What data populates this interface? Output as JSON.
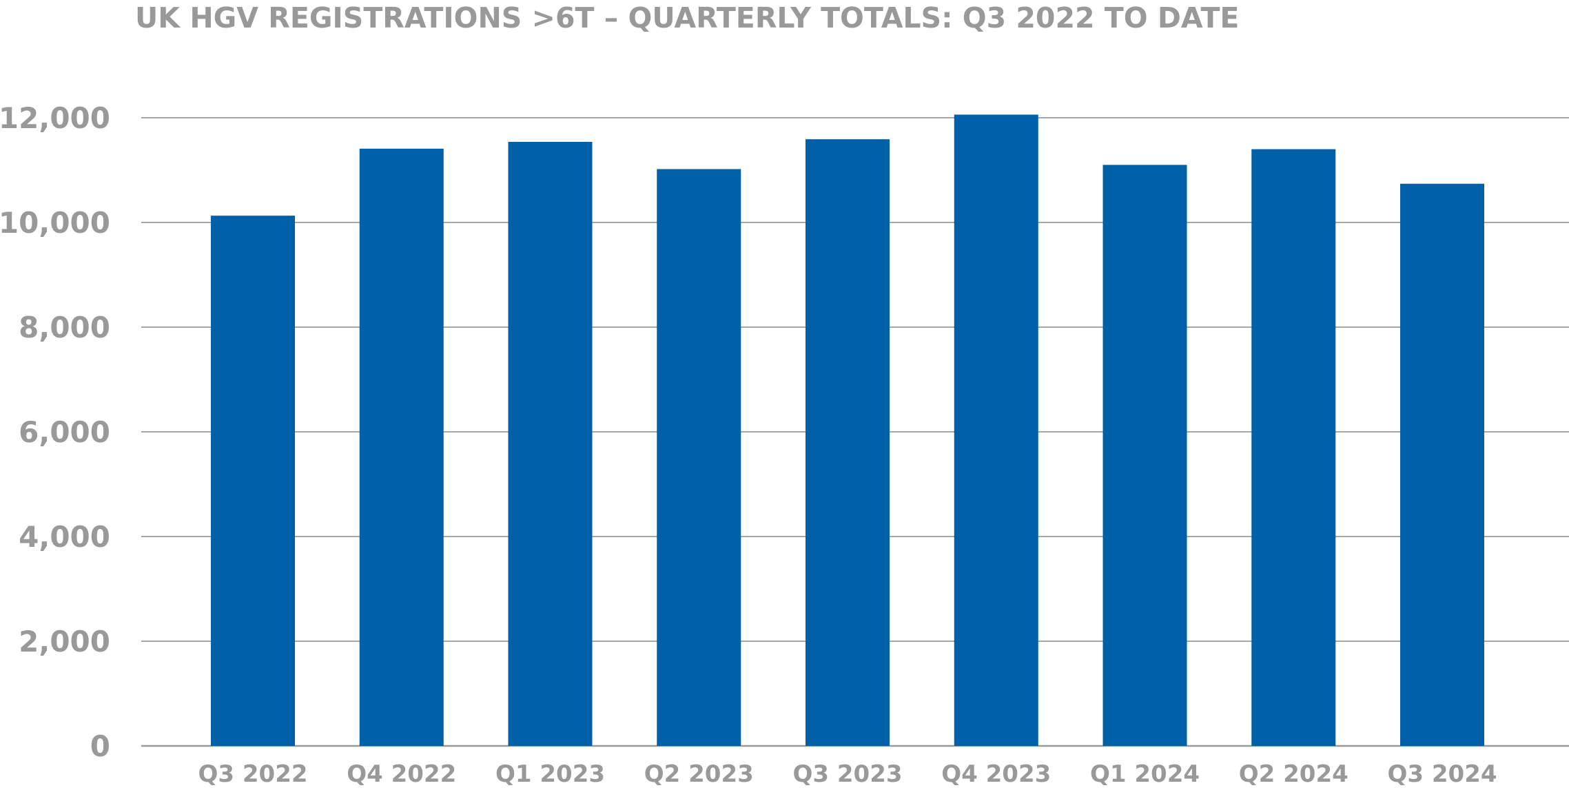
{
  "chart_data": {
    "type": "bar",
    "title": "UK HGV REGISTRATIONS >6T – QUARTERLY TOTALS: Q3 2022 TO DATE",
    "xlabel": "",
    "ylabel": "",
    "categories": [
      "Q3 2022",
      "Q4 2022",
      "Q1 2023",
      "Q2 2023",
      "Q3 2023",
      "Q4 2023",
      "Q1 2024",
      "Q2 2024",
      "Q3 2024"
    ],
    "values": [
      10130,
      11410,
      11540,
      11020,
      11590,
      12060,
      11100,
      11400,
      10740
    ],
    "ylim": [
      0,
      12000
    ],
    "yticks": [
      0,
      2000,
      4000,
      6000,
      8000,
      10000,
      12000
    ],
    "ytick_labels": [
      "0",
      "2,000",
      "4,000",
      "6,000",
      "8,000",
      "10,000",
      "12,000"
    ],
    "bar_color": "#0061a8",
    "grid": true,
    "legend": "none"
  }
}
